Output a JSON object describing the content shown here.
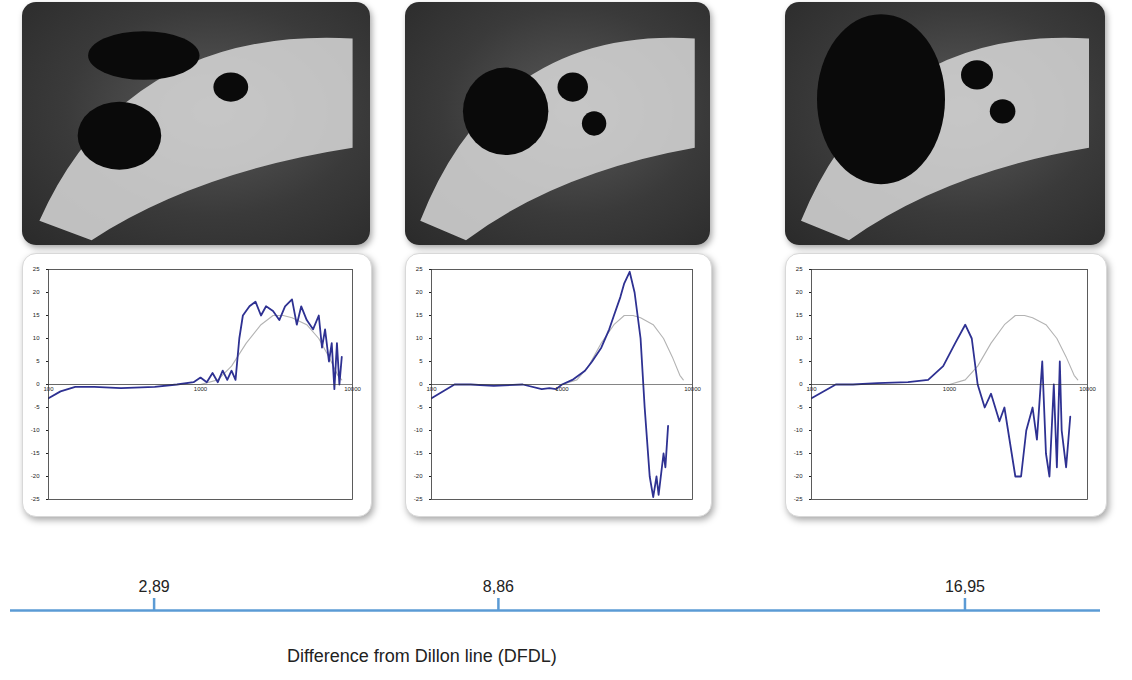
{
  "chart_data": [
    {
      "type": "line",
      "log": "x",
      "xlim": [
        100,
        10000
      ],
      "xticks": [
        100,
        1000,
        10000
      ],
      "ylim": [
        -25,
        25
      ],
      "yticks": [
        -25,
        -20,
        -15,
        -10,
        -5,
        0,
        5,
        10,
        15,
        20,
        25
      ],
      "series": [
        {
          "color": "#2e3192",
          "line_style": "solid",
          "x": [
            100,
            120,
            150,
            200,
            300,
            500,
            700,
            900,
            1000,
            1100,
            1200,
            1300,
            1400,
            1500,
            1600,
            1700,
            1800,
            1900,
            2100,
            2300,
            2500,
            2700,
            3000,
            3300,
            3600,
            4000,
            4300,
            4600,
            5000,
            5500,
            6000,
            6300,
            6600,
            7000,
            7300,
            7600,
            7900,
            8200,
            8500
          ],
          "values": [
            -3,
            -1.5,
            -0.5,
            -0.5,
            -0.8,
            -0.5,
            0,
            0.5,
            1.5,
            0.5,
            2.5,
            0.5,
            3,
            1,
            3,
            1,
            10,
            15,
            17,
            18,
            15,
            17,
            16,
            14,
            17,
            18.5,
            13,
            17,
            14,
            12,
            15,
            8,
            12,
            5,
            9,
            -1,
            9,
            0,
            6
          ]
        },
        {
          "color": "#b3b3b3",
          "line_style": "solid",
          "x": [
            100,
            1000,
            1300,
            1600,
            2000,
            2500,
            3000,
            3500,
            4000,
            5000,
            6000,
            7000,
            8000,
            8500
          ],
          "values": [
            0,
            0,
            1,
            4,
            9,
            13,
            15,
            15,
            14.5,
            13,
            10,
            6,
            2,
            1
          ]
        }
      ]
    },
    {
      "type": "line",
      "log": "x",
      "xlim": [
        100,
        10000
      ],
      "xticks": [
        100,
        1000,
        10000
      ],
      "ylim": [
        -25,
        25
      ],
      "yticks": [
        -25,
        -20,
        -15,
        -10,
        -5,
        0,
        5,
        10,
        15,
        20,
        25
      ],
      "series": [
        {
          "color": "#2e3192",
          "line_style": "solid",
          "x": [
            100,
            150,
            200,
            300,
            500,
            700,
            800,
            900,
            1000,
            1200,
            1500,
            1700,
            2000,
            2300,
            2500,
            2800,
            3000,
            3300,
            3600,
            4000,
            4300,
            4700,
            5000,
            5300,
            5500,
            6000,
            6200,
            6500
          ],
          "values": [
            -3,
            0,
            0,
            -0.3,
            0,
            -1,
            -0.8,
            -1,
            0,
            1,
            3,
            5,
            8,
            12,
            15,
            19,
            22,
            24.5,
            20,
            10,
            -5,
            -20,
            -24.5,
            -20,
            -24,
            -15,
            -18,
            -9
          ]
        },
        {
          "color": "#b3b3b3",
          "line_style": "solid",
          "x": [
            100,
            1000,
            1300,
            1600,
            2000,
            2500,
            3000,
            3500,
            4000,
            5000,
            6000,
            7000,
            8000,
            8500
          ],
          "values": [
            0,
            0,
            1,
            4,
            9,
            13,
            15,
            15,
            14.5,
            13,
            10,
            6,
            2,
            1
          ]
        }
      ]
    },
    {
      "type": "line",
      "log": "x",
      "xlim": [
        100,
        10000
      ],
      "xticks": [
        100,
        1000,
        10000
      ],
      "ylim": [
        -25,
        25
      ],
      "yticks": [
        -25,
        -20,
        -15,
        -10,
        -5,
        0,
        5,
        10,
        15,
        20,
        25
      ],
      "series": [
        {
          "color": "#2e3192",
          "line_style": "solid",
          "x": [
            100,
            150,
            200,
            300,
            500,
            700,
            900,
            1100,
            1300,
            1450,
            1600,
            1800,
            2000,
            2300,
            2500,
            3000,
            3300,
            3600,
            4000,
            4300,
            4700,
            5000,
            5300,
            5700,
            6000,
            6300,
            6500,
            7000,
            7500
          ],
          "values": [
            -3,
            0,
            0,
            0.3,
            0.5,
            1,
            4,
            9,
            13,
            10,
            0,
            -5,
            -2,
            -8,
            -5,
            -20,
            -20,
            -10,
            -5,
            -12,
            5,
            -15,
            -20,
            0,
            -18,
            5,
            -10,
            -18,
            -7
          ]
        },
        {
          "color": "#b3b3b3",
          "line_style": "solid",
          "x": [
            100,
            1000,
            1300,
            1600,
            2000,
            2500,
            3000,
            3500,
            4000,
            5000,
            6000,
            7000,
            8000,
            8500
          ],
          "values": [
            0,
            0,
            1,
            4,
            9,
            13,
            15,
            15,
            14.5,
            13,
            10,
            6,
            2,
            1
          ]
        }
      ]
    },
    {
      "type": "axis",
      "xlabel": "Difference from Dillon line (DFDL)",
      "color": "#5b9bd5",
      "xlim": [
        0.4,
        19.3
      ],
      "xticks": [
        {
          "value": 2.89,
          "label": "2,89"
        },
        {
          "value": 8.86,
          "label": "8,86"
        },
        {
          "value": 16.95,
          "label": "16,95"
        }
      ]
    }
  ]
}
